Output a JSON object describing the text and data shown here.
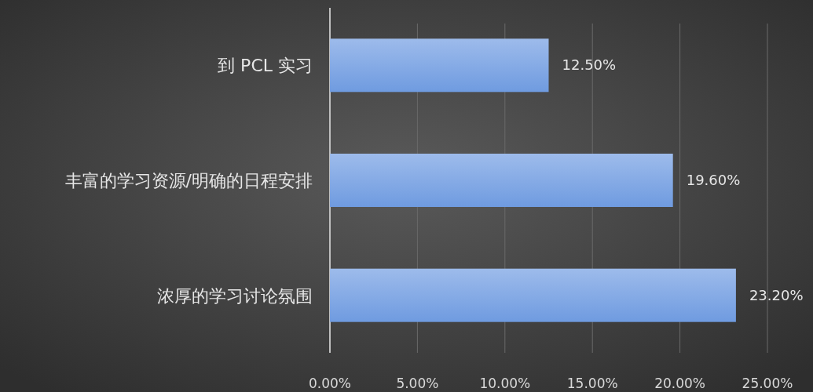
{
  "chart_data": {
    "type": "bar",
    "orientation": "horizontal",
    "categories": [
      "到 PCL 实习",
      "丰富的学习资源/明确的日程安排",
      "浓厚的学习讨论氛围"
    ],
    "values": [
      12.5,
      19.6,
      23.2
    ],
    "value_labels": [
      "12.50%",
      "19.60%",
      "23.20%"
    ],
    "color": "#6f9be0",
    "xlim": [
      0,
      25
    ],
    "xticks": [
      {
        "value": 0,
        "label": "0.00%"
      },
      {
        "value": 5,
        "label": "5.00%"
      },
      {
        "value": 10,
        "label": "10.00%"
      },
      {
        "value": 15,
        "label": "15.00%"
      },
      {
        "value": 20,
        "label": "20.00%"
      },
      {
        "value": 25,
        "label": "25.00%"
      }
    ],
    "grid": "x"
  }
}
